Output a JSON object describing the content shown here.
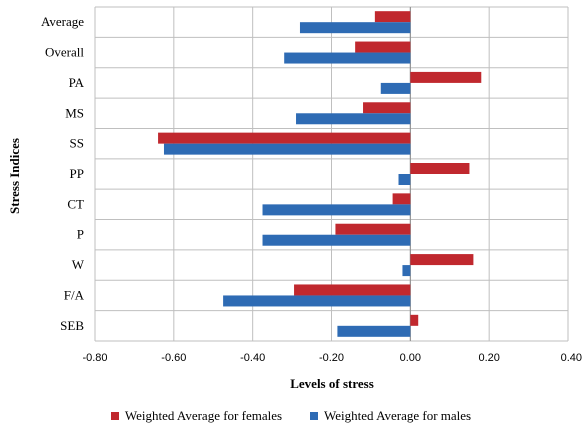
{
  "chart_data": {
    "type": "bar",
    "orientation": "horizontal",
    "categories": [
      "Average",
      "Overall",
      "PA",
      "MS",
      "SS",
      "PP",
      "CT",
      "P",
      "W",
      "F/A",
      "SEB"
    ],
    "series": [
      {
        "name": "Weighted Average for females",
        "color": "#c0282e",
        "values": [
          -0.09,
          -0.14,
          0.18,
          -0.12,
          -0.64,
          0.15,
          -0.045,
          -0.19,
          0.16,
          -0.295,
          0.02
        ]
      },
      {
        "name": "Weighted Average for males",
        "color": "#2e6bb4",
        "values": [
          -0.28,
          -0.32,
          -0.075,
          -0.29,
          -0.625,
          -0.03,
          -0.375,
          -0.375,
          -0.02,
          -0.475,
          -0.185
        ]
      }
    ],
    "xlabel": "Levels of stress",
    "ylabel": "Stress Indices",
    "xlim": [
      -0.8,
      0.4
    ],
    "xticks": [
      "-0.80",
      "-0.60",
      "-0.40",
      "-0.20",
      "0.00",
      "0.20",
      "0.40"
    ],
    "grid": true,
    "legend_position": "bottom"
  }
}
